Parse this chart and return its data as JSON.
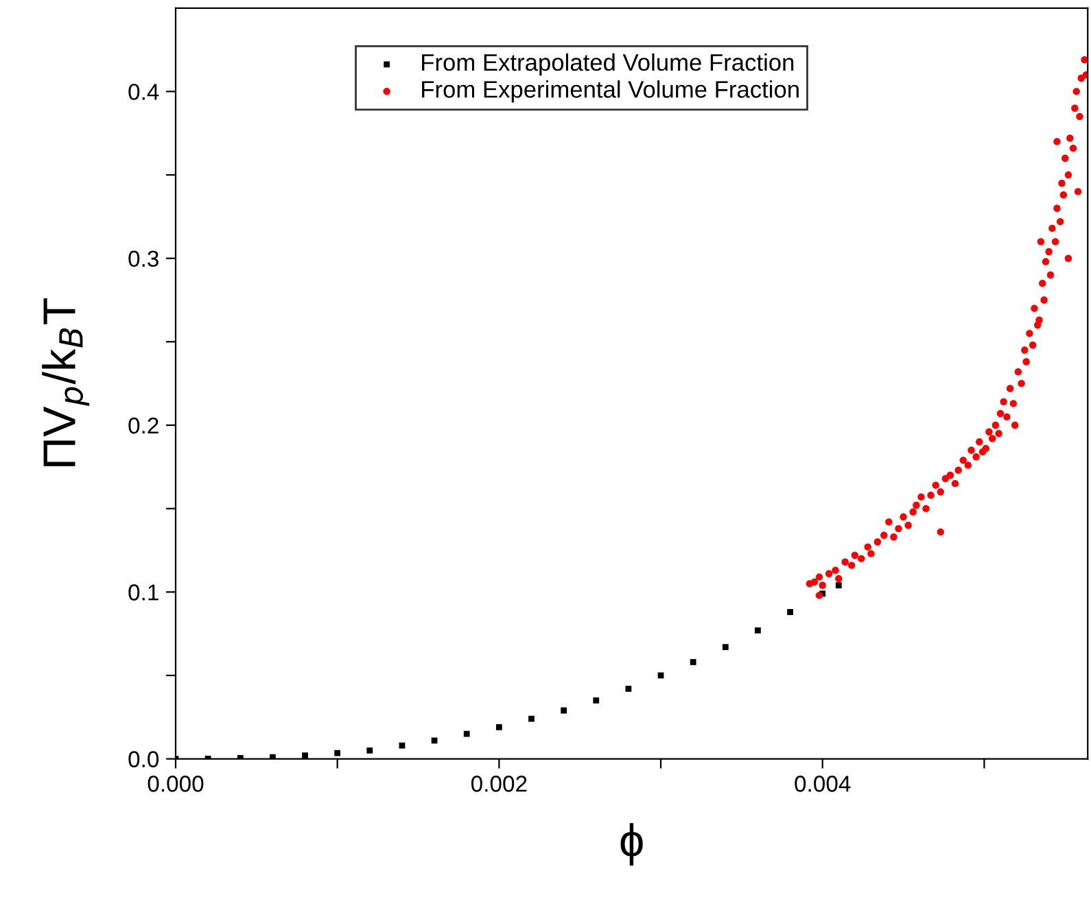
{
  "chart_data": {
    "type": "scatter",
    "xlabel": "ϕ",
    "ylabel": "ΠV$_{p}$/k$_{B}$T",
    "xlim": [
      0,
      0.00564
    ],
    "ylim": [
      0,
      0.45
    ],
    "xticks": [
      {
        "value": 0,
        "label": "0.000"
      },
      {
        "value": 0.001,
        "label": null
      },
      {
        "value": 0.002,
        "label": "0.002"
      },
      {
        "value": 0.003,
        "label": null
      },
      {
        "value": 0.004,
        "label": "0.004"
      },
      {
        "value": 0.005,
        "label": null
      }
    ],
    "yticks": [
      {
        "value": 0,
        "label": "0.0"
      },
      {
        "value": 0.05,
        "label": null
      },
      {
        "value": 0.1,
        "label": "0.1"
      },
      {
        "value": 0.15,
        "label": null
      },
      {
        "value": 0.2,
        "label": "0.2"
      },
      {
        "value": 0.25,
        "label": null
      },
      {
        "value": 0.3,
        "label": "0.3"
      },
      {
        "value": 0.35,
        "label": null
      },
      {
        "value": 0.4,
        "label": "0.4"
      }
    ],
    "grid": false,
    "legend": "top",
    "series": [
      {
        "name": "From Extrapolated Volume Fraction",
        "color": "#000000",
        "marker": "square",
        "x": [
          0,
          0.0002,
          0.0004,
          0.0006,
          0.0008,
          0.001,
          0.0012,
          0.0014,
          0.0016,
          0.0018,
          0.002,
          0.0022,
          0.0024,
          0.0026,
          0.0028,
          0.003,
          0.0032,
          0.0034,
          0.0036,
          0.0038,
          0.004,
          0.0041
        ],
        "values": [
          0,
          0.0001,
          0.0005,
          0.001,
          0.002,
          0.0035,
          0.005,
          0.008,
          0.011,
          0.015,
          0.019,
          0.024,
          0.029,
          0.035,
          0.042,
          0.05,
          0.058,
          0.067,
          0.077,
          0.088,
          0.099,
          0.104
        ]
      },
      {
        "name": "From Experimental Volume Fraction",
        "color": "#ff0000",
        "marker": "circle",
        "x": [
          0.00392,
          0.00395,
          0.00398,
          0.004,
          0.00398,
          0.00404,
          0.00408,
          0.0041,
          0.00414,
          0.00418,
          0.0042,
          0.00424,
          0.00428,
          0.0043,
          0.00434,
          0.00438,
          0.00441,
          0.00444,
          0.00447,
          0.0045,
          0.00453,
          0.00456,
          0.00458,
          0.00461,
          0.00464,
          0.00467,
          0.0047,
          0.00473,
          0.00473,
          0.00476,
          0.00479,
          0.00482,
          0.00484,
          0.00487,
          0.0049,
          0.00492,
          0.00495,
          0.00497,
          0.00499,
          0.00501,
          0.00503,
          0.00505,
          0.00507,
          0.00509,
          0.0051,
          0.00512,
          0.00514,
          0.00516,
          0.00518,
          0.00519,
          0.00521,
          0.00523,
          0.00525,
          0.00526,
          0.00528,
          0.0053,
          0.00531,
          0.00533,
          0.00534,
          0.00536,
          0.00537,
          0.00538,
          0.0054,
          0.00541,
          0.00542,
          0.00544,
          0.00545,
          0.00547,
          0.00548,
          0.00549,
          0.0055,
          0.00552,
          0.00553,
          0.00555,
          0.00556,
          0.00557,
          0.00559,
          0.0056,
          0.00562,
          0.00563,
          0.00535,
          0.00545,
          0.00552,
          0.00558
        ],
        "values": [
          0.105,
          0.106,
          0.098,
          0.104,
          0.109,
          0.111,
          0.113,
          0.108,
          0.118,
          0.116,
          0.122,
          0.12,
          0.127,
          0.123,
          0.13,
          0.134,
          0.142,
          0.133,
          0.138,
          0.145,
          0.14,
          0.148,
          0.152,
          0.157,
          0.15,
          0.158,
          0.164,
          0.136,
          0.16,
          0.168,
          0.17,
          0.165,
          0.173,
          0.179,
          0.176,
          0.185,
          0.181,
          0.19,
          0.184,
          0.186,
          0.196,
          0.192,
          0.2,
          0.195,
          0.207,
          0.214,
          0.205,
          0.222,
          0.213,
          0.2,
          0.232,
          0.225,
          0.245,
          0.238,
          0.255,
          0.248,
          0.27,
          0.26,
          0.263,
          0.285,
          0.275,
          0.298,
          0.304,
          0.29,
          0.318,
          0.31,
          0.33,
          0.322,
          0.345,
          0.338,
          0.36,
          0.35,
          0.372,
          0.366,
          0.39,
          0.4,
          0.385,
          0.408,
          0.419,
          0.41,
          0.31,
          0.37,
          0.3,
          0.34
        ]
      }
    ]
  }
}
